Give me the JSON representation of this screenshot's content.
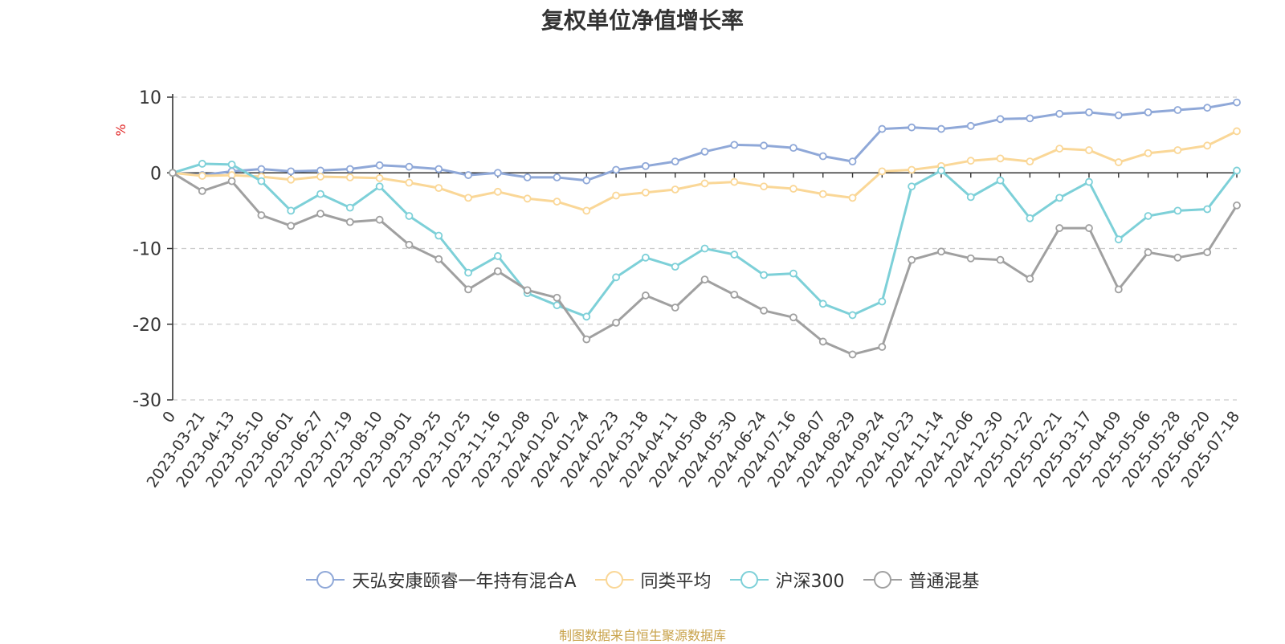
{
  "title": "复权单位净值增长率",
  "source_note": "制图数据来自恒生聚源数据库",
  "chart_data": {
    "type": "line",
    "title": "复权单位净值增长率",
    "ylabel": "%",
    "ylim": [
      -30,
      10
    ],
    "yticks": [
      10,
      0,
      -10,
      -20,
      -30
    ],
    "grid": true,
    "legend_position": "bottom",
    "x_ticks": [
      "0",
      "2023-03-21",
      "2023-04-13",
      "2023-05-10",
      "2023-06-01",
      "2023-06-27",
      "2023-07-19",
      "2023-08-10",
      "2023-09-01",
      "2023-09-25",
      "2023-10-25",
      "2023-11-16",
      "2023-12-08",
      "2024-01-02",
      "2024-01-24",
      "2024-02-23",
      "2024-03-18",
      "2024-04-11",
      "2024-05-08",
      "2024-05-30",
      "2024-06-24",
      "2024-07-16",
      "2024-08-07",
      "2024-08-29",
      "2024-09-24",
      "2024-10-23",
      "2024-11-14",
      "2024-12-06",
      "2024-12-30",
      "2025-01-22",
      "2025-02-21",
      "2025-03-17",
      "2025-04-09",
      "2025-05-06",
      "2025-05-28",
      "2025-06-20",
      "2025-07-18"
    ],
    "x": [
      "0",
      "2023-03-21",
      "2023-04-13",
      "2023-05-10",
      "2023-06-01",
      "2023-06-27",
      "2023-07-19",
      "2023-08-10",
      "2023-09-01",
      "2023-09-25",
      "2023-10-25",
      "2023-11-16",
      "2023-12-08",
      "2024-01-02",
      "2024-01-24",
      "2024-02-23",
      "2024-03-18",
      "2024-04-11",
      "2024-05-08",
      "2024-05-30",
      "2024-06-24",
      "2024-07-16",
      "2024-08-07",
      "2024-08-29",
      "2024-09-24",
      "2024-10-23",
      "2024-11-14",
      "2024-12-06",
      "2024-12-30",
      "2025-01-22",
      "2025-02-21",
      "2025-03-17",
      "2025-04-09",
      "2025-05-06",
      "2025-05-28",
      "2025-06-20",
      "2025-07-18"
    ],
    "series": [
      {
        "name": "天弘安康颐睿一年持有混合A",
        "color": "#8fa8d8",
        "values": [
          0.0,
          -0.3,
          0.2,
          0.5,
          0.2,
          0.3,
          0.5,
          1.0,
          0.8,
          0.5,
          -0.3,
          0.0,
          -0.6,
          -0.6,
          -1.0,
          0.4,
          0.9,
          1.5,
          2.8,
          3.7,
          3.6,
          3.3,
          2.2,
          1.5,
          5.8,
          6.0,
          5.8,
          6.2,
          7.1,
          7.2,
          7.8,
          8.0,
          7.6,
          8.0,
          8.3,
          8.6,
          9.3
        ]
      },
      {
        "name": "同类平均",
        "color": "#fad797",
        "values": [
          0.0,
          -0.4,
          -0.3,
          -0.5,
          -0.9,
          -0.5,
          -0.6,
          -0.7,
          -1.3,
          -2.0,
          -3.3,
          -2.5,
          -3.4,
          -3.8,
          -5.0,
          -3.0,
          -2.6,
          -2.2,
          -1.4,
          -1.2,
          -1.8,
          -2.1,
          -2.8,
          -3.3,
          0.2,
          0.4,
          0.9,
          1.6,
          1.9,
          1.5,
          3.2,
          3.0,
          1.4,
          2.6,
          3.0,
          3.6,
          5.5
        ]
      },
      {
        "name": "沪深300",
        "color": "#7dd0d8",
        "values": [
          0.0,
          1.2,
          1.1,
          -1.1,
          -5.0,
          -2.8,
          -4.6,
          -1.8,
          -5.7,
          -8.3,
          -13.2,
          -11.0,
          -15.9,
          -17.5,
          -19.0,
          -13.8,
          -11.2,
          -12.4,
          -10.0,
          -10.8,
          -13.5,
          -13.3,
          -17.3,
          -18.8,
          -17.0,
          -1.8,
          0.3,
          -3.2,
          -1.0,
          -6.0,
          -3.3,
          -1.2,
          -8.8,
          -5.7,
          -5.0,
          -4.8,
          0.3
        ]
      },
      {
        "name": "普通混基",
        "color": "#a0a0a0",
        "values": [
          0.0,
          -2.4,
          -1.1,
          -5.6,
          -7.0,
          -5.4,
          -6.5,
          -6.2,
          -9.5,
          -11.4,
          -15.4,
          -13.0,
          -15.5,
          -16.5,
          -22.0,
          -19.8,
          -16.2,
          -17.8,
          -14.1,
          -16.1,
          -18.2,
          -19.1,
          -22.3,
          -24.0,
          -23.0,
          -11.5,
          -10.4,
          -11.3,
          -11.5,
          -14.0,
          -7.3,
          -7.3,
          -15.4,
          -10.5,
          -11.2,
          -10.5,
          -4.3
        ]
      }
    ]
  }
}
